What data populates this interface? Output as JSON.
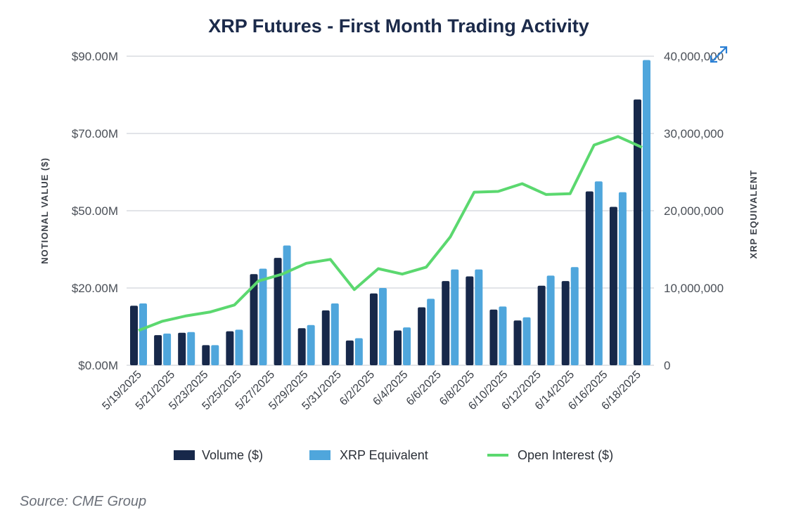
{
  "chart_data": {
    "type": "bar",
    "title": "XRP Futures - First Month Trading Activity",
    "ylabel_left": "NOTIONAL VALUE ($)",
    "ylabel_right": "XRP EQUIVALENT",
    "yticks_left": [
      "$0.00M",
      "$20.00M",
      "$50.00M",
      "$70.00M",
      "$90.00M"
    ],
    "yticks_right": [
      "0",
      "10,000,000",
      "20,000,000",
      "30,000,000",
      "40,000,000"
    ],
    "ylim_right_millions": [
      0,
      40
    ],
    "x_tick_labels": [
      "5/19/2025",
      "5/21/2025",
      "5/23/2025",
      "5/25/2025",
      "5/27/2025",
      "5/29/2025",
      "5/31/2025",
      "6/2/2025",
      "6/4/2025",
      "6/6/2025",
      "6/8/2025",
      "6/10/2025",
      "6/12/2025",
      "6/14/2025",
      "6/16/2025",
      "6/18/2025"
    ],
    "grid": true,
    "legend_position": "bottom",
    "units_note": "values read on right-axis scale, millions",
    "series": [
      {
        "name": "Volume ($)",
        "type": "bar",
        "color": "#17284a",
        "values": [
          7.7,
          3.9,
          4.2,
          2.6,
          4.4,
          11.8,
          13.9,
          4.8,
          7.1,
          3.2,
          9.3,
          4.5,
          7.5,
          10.9,
          11.5,
          7.2,
          5.8,
          10.3,
          10.9,
          22.5,
          20.5,
          34.4
        ]
      },
      {
        "name": "XRP Equivalent",
        "type": "bar",
        "color": "#4fa6dc",
        "values": [
          8.0,
          4.1,
          4.3,
          2.6,
          4.6,
          12.5,
          15.5,
          5.2,
          8.0,
          3.5,
          10.0,
          4.9,
          8.6,
          12.4,
          12.4,
          7.6,
          6.2,
          11.6,
          12.7,
          23.8,
          22.4,
          39.5
        ]
      },
      {
        "name": "Open Interest ($)",
        "type": "line",
        "color": "#5bd86f",
        "values": [
          4.5,
          5.7,
          6.4,
          6.9,
          7.8,
          10.9,
          11.8,
          13.2,
          13.7,
          9.8,
          12.5,
          11.8,
          12.7,
          16.6,
          22.4,
          22.5,
          23.5,
          22.1,
          22.2,
          28.5,
          29.6,
          28.2
        ]
      }
    ]
  },
  "source": "Source: CME Group"
}
